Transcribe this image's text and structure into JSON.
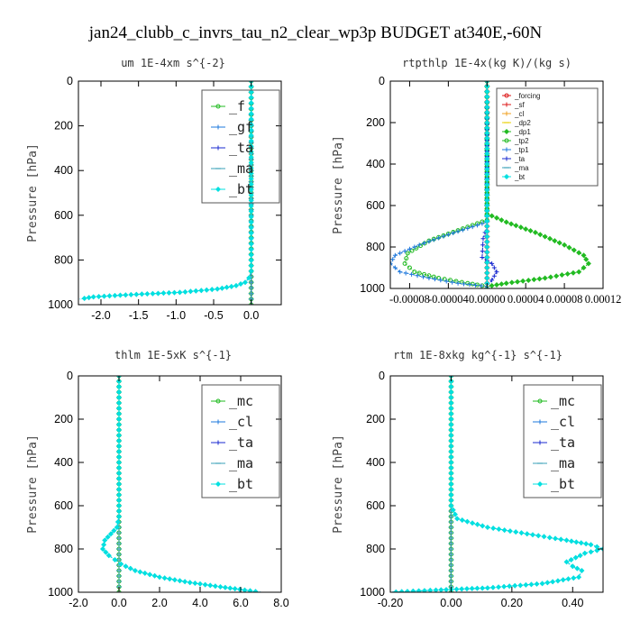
{
  "page_title": "jan24_clubb_c_invrs_tau_n2_clear_wp3p  BUDGET at340E,-60N",
  "colors": {
    "green": "#22bb22",
    "blue": "#1e78dc",
    "navy": "#1a2ad0",
    "teal": "#3aa0b8",
    "cyan": "#00e0e0",
    "red": "#dd1a1a",
    "orange": "#f0a020",
    "yellow": "#e8d000"
  },
  "chart_data": [
    {
      "type": "line",
      "title": "um   1E-4xm s^{-2}",
      "ylabel": "Pressure [hPa]",
      "xlim": [
        -2.3,
        0.4
      ],
      "ylim": [
        1000,
        0
      ],
      "xticks": [
        -2.0,
        -1.5,
        -1.0,
        -0.5,
        0.0
      ],
      "xtick_labels": [
        "-2.0",
        "-1.5",
        "-1.0",
        "-0.5",
        "0.0"
      ],
      "yticks": [
        0,
        200,
        400,
        600,
        800,
        1000
      ],
      "legend": [
        "_f",
        "_gf",
        "_ta",
        "_ma",
        "_bt"
      ],
      "legend_style": "big",
      "legend_position": "top-right",
      "series": [
        {
          "name": "_f",
          "color": "green",
          "x": [
            0,
            0
          ],
          "y": [
            0,
            1000
          ]
        },
        {
          "name": "_gf",
          "color": "blue",
          "x": [
            0,
            0,
            -0.03,
            -0.08,
            -0.2,
            -0.45,
            -0.95,
            -1.6,
            -2.1,
            -2.28
          ],
          "y": [
            0,
            850,
            880,
            900,
            915,
            930,
            945,
            955,
            965,
            975
          ]
        },
        {
          "name": "_ta",
          "color": "navy",
          "x": [
            0,
            0
          ],
          "y": [
            0,
            1000
          ]
        },
        {
          "name": "_ma",
          "color": "teal",
          "x": [
            0,
            0
          ],
          "y": [
            0,
            1000
          ]
        },
        {
          "name": "_bt",
          "color": "cyan",
          "x": [
            0,
            0,
            -0.03,
            -0.08,
            -0.2,
            -0.45,
            -0.95,
            -1.6,
            -2.1,
            -2.28
          ],
          "y": [
            0,
            850,
            880,
            900,
            915,
            930,
            945,
            955,
            965,
            975
          ]
        }
      ]
    },
    {
      "type": "line",
      "title": "rtpthlp   1E-4x(kg K)/(kg s)",
      "ylabel": "Pressure [hPa]",
      "xlim": [
        -0.0001,
        0.00012
      ],
      "ylim": [
        1000,
        0
      ],
      "xticks": [
        -8e-05,
        -4e-05,
        0.0,
        4e-05,
        8e-05,
        0.00012
      ],
      "xtick_labels": [
        "-0.00008",
        "-0.00004",
        "0.00000",
        "0.00004",
        "0.00008",
        "0.00012"
      ],
      "yticks": [
        0,
        200,
        400,
        600,
        800,
        1000
      ],
      "legend": [
        "_forcing",
        "_sf",
        "_cl",
        "_dp2",
        "_dp1",
        "_tp2",
        "_tp1",
        "_ta",
        "_ma",
        "_bt"
      ],
      "legend_style": "small",
      "legend_position": "top-right",
      "series": [
        {
          "name": "_forcing",
          "color": "red",
          "x": [
            0,
            0
          ],
          "y": [
            0,
            1000
          ]
        },
        {
          "name": "_sf",
          "color": "red",
          "x": [
            0,
            0
          ],
          "y": [
            0,
            1000
          ]
        },
        {
          "name": "_cl",
          "color": "orange",
          "x": [
            0,
            0
          ],
          "y": [
            0,
            1000
          ]
        },
        {
          "name": "_dp2",
          "color": "yellow",
          "x": [
            0,
            0
          ],
          "y": [
            0,
            1000
          ]
        },
        {
          "name": "_dp1",
          "color": "green",
          "x": [
            0,
            0,
            2e-05,
            5e-05,
            8e-05,
            0.0001,
            0.000105,
            9.5e-05,
            6e-05,
            2e-05,
            0
          ],
          "y": [
            0,
            640,
            680,
            730,
            790,
            840,
            880,
            920,
            950,
            975,
            990
          ]
        },
        {
          "name": "_tp2",
          "color": "green",
          "x": [
            0,
            0,
            -3e-05,
            -6e-05,
            -8.2e-05,
            -8.5e-05,
            -7.5e-05,
            -5e-05,
            -2e-05,
            0
          ],
          "y": [
            0,
            670,
            720,
            770,
            830,
            880,
            920,
            950,
            975,
            990
          ]
        },
        {
          "name": "_tp1",
          "color": "blue",
          "x": [
            0,
            0,
            -4e-05,
            -7e-05,
            -9.5e-05,
            -0.0001,
            -9e-05,
            -6e-05,
            -3e-05,
            0
          ],
          "y": [
            0,
            680,
            740,
            790,
            840,
            880,
            920,
            950,
            975,
            990
          ]
        },
        {
          "name": "_ta",
          "color": "navy",
          "x": [
            0,
            0,
            -4e-06,
            -5e-06,
            5e-06,
            1e-05,
            5e-06,
            0
          ],
          "y": [
            0,
            700,
            760,
            850,
            880,
            920,
            960,
            990
          ]
        },
        {
          "name": "_ma",
          "color": "teal",
          "x": [
            0,
            0
          ],
          "y": [
            0,
            1000
          ]
        },
        {
          "name": "_bt",
          "color": "cyan",
          "x": [
            0,
            0
          ],
          "y": [
            0,
            1000
          ]
        }
      ]
    },
    {
      "type": "line",
      "title": "thlm   1E-5xK s^{-1}",
      "ylabel": "Pressure [hPa]",
      "xlim": [
        -2.0,
        8.0
      ],
      "ylim": [
        1000,
        0
      ],
      "xticks": [
        -2.0,
        0.0,
        2.0,
        4.0,
        6.0,
        8.0
      ],
      "xtick_labels": [
        "-2.0",
        "0.0",
        "2.0",
        "4.0",
        "6.0",
        "8.0"
      ],
      "yticks": [
        0,
        200,
        400,
        600,
        800,
        1000
      ],
      "legend": [
        "_mc",
        "_cl",
        "_ta",
        "_ma",
        "_bt"
      ],
      "legend_style": "big",
      "legend_position": "top-right",
      "series": [
        {
          "name": "_mc",
          "color": "green",
          "x": [
            0,
            0
          ],
          "y": [
            0,
            1000
          ]
        },
        {
          "name": "_cl",
          "color": "blue",
          "x": [
            0,
            0,
            -0.1,
            -0.4,
            -0.7,
            -0.8,
            -0.5,
            -0.2,
            0.1,
            0.8,
            2.0,
            3.5,
            5.0,
            6.2,
            7.0
          ],
          "y": [
            0,
            650,
            700,
            730,
            760,
            800,
            830,
            850,
            870,
            900,
            930,
            955,
            975,
            990,
            1000
          ]
        },
        {
          "name": "_ta",
          "color": "navy",
          "x": [
            0,
            0
          ],
          "y": [
            0,
            1000
          ]
        },
        {
          "name": "_ma",
          "color": "teal",
          "x": [
            0,
            0
          ],
          "y": [
            0,
            1000
          ]
        },
        {
          "name": "_bt",
          "color": "cyan",
          "x": [
            0,
            0,
            -0.1,
            -0.4,
            -0.7,
            -0.8,
            -0.5,
            -0.2,
            0.1,
            0.8,
            2.0,
            3.5,
            5.0,
            6.2,
            7.0
          ],
          "y": [
            0,
            650,
            700,
            730,
            760,
            800,
            830,
            850,
            870,
            900,
            930,
            955,
            975,
            990,
            1000
          ]
        }
      ]
    },
    {
      "type": "line",
      "title": "rtm   1E-8xkg kg^{-1} s^{-1}",
      "ylabel": "Pressure [hPa]",
      "xlim": [
        -0.2,
        0.5
      ],
      "ylim": [
        1000,
        0
      ],
      "xticks": [
        -0.2,
        0.0,
        0.2,
        0.4
      ],
      "xtick_labels": [
        "-0.20",
        "0.00",
        "0.20",
        "0.40"
      ],
      "yticks": [
        0,
        200,
        400,
        600,
        800,
        1000
      ],
      "legend": [
        "_mc",
        "_cl",
        "_ta",
        "_ma",
        "_bt"
      ],
      "legend_style": "big",
      "legend_position": "top-right",
      "series": [
        {
          "name": "_mc",
          "color": "green",
          "x": [
            0,
            0
          ],
          "y": [
            0,
            1000
          ]
        },
        {
          "name": "_cl",
          "color": "blue",
          "x": [
            0,
            0,
            0.02,
            0.12,
            0.25,
            0.38,
            0.46,
            0.5,
            0.44,
            0.38,
            0.4,
            0.43,
            0.42,
            0.3,
            0.12,
            -0.05,
            -0.2
          ],
          "y": [
            0,
            600,
            660,
            700,
            730,
            760,
            780,
            800,
            820,
            860,
            880,
            900,
            930,
            960,
            980,
            990,
            1000
          ]
        },
        {
          "name": "_ta",
          "color": "navy",
          "x": [
            0,
            0
          ],
          "y": [
            0,
            1000
          ]
        },
        {
          "name": "_ma",
          "color": "teal",
          "x": [
            0,
            0
          ],
          "y": [
            0,
            1000
          ]
        },
        {
          "name": "_bt",
          "color": "cyan",
          "x": [
            0,
            0,
            0.02,
            0.12,
            0.25,
            0.38,
            0.46,
            0.5,
            0.44,
            0.38,
            0.4,
            0.43,
            0.42,
            0.3,
            0.12,
            -0.05,
            -0.2
          ],
          "y": [
            0,
            600,
            660,
            700,
            730,
            760,
            780,
            800,
            820,
            860,
            880,
            900,
            930,
            960,
            980,
            990,
            1000
          ]
        }
      ]
    }
  ]
}
